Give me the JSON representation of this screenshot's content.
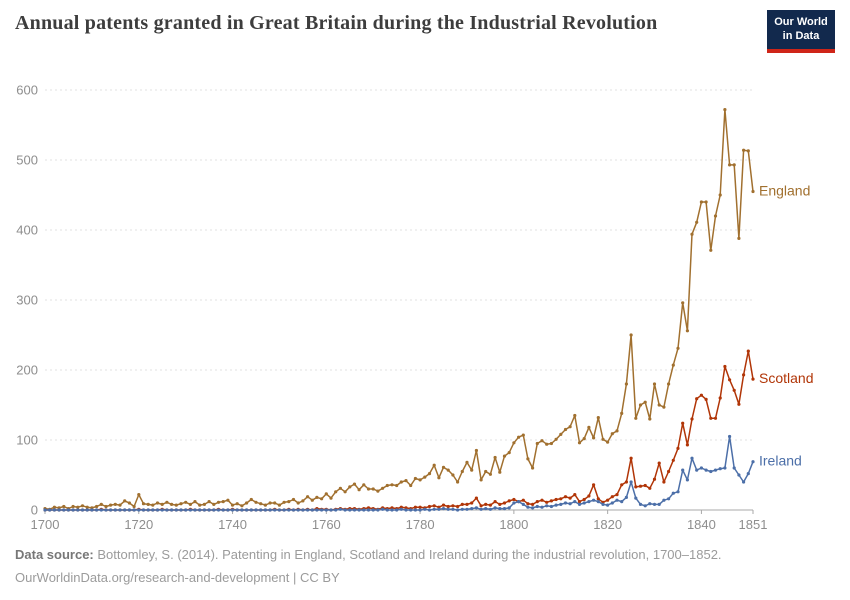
{
  "header": {
    "title": "Annual patents granted in Great Britain during the Industrial Revolution",
    "logo": {
      "line1": "Our World",
      "line2": "in Data"
    }
  },
  "colors": {
    "logo_bg": "#12294d",
    "logo_accent": "#cf2518",
    "title_text": "#3d3d3d",
    "axis_text": "#8e8e8e",
    "gridline": "#e2e2e2",
    "zero_line": "#a9a9a9"
  },
  "footer": {
    "source_label": "Data source:",
    "source_text": " Bottomley, S. (2014). Patenting in England, Scotland and Ireland during the industrial revolution, 1700–1852.",
    "link": "OurWorldinData.org/research-and-development",
    "separator": " | ",
    "license": "CC BY"
  },
  "chart_data": {
    "type": "line",
    "title": "Annual patents granted in Great Britain during the Industrial Revolution",
    "xlabel": "",
    "ylabel": "",
    "x_range": [
      1700,
      1851
    ],
    "ylim": [
      0,
      600
    ],
    "yticks": [
      0,
      100,
      200,
      300,
      400,
      500,
      600
    ],
    "xticks": [
      1700,
      1720,
      1740,
      1760,
      1780,
      1800,
      1820,
      1840,
      1851
    ],
    "grid": "horizontal-dashed",
    "legend_position": "end-of-line-labels",
    "markers": true,
    "series": [
      {
        "name": "England",
        "color": "#a1702f",
        "values": [
          2,
          1,
          4,
          3,
          5,
          2,
          5,
          4,
          6,
          4,
          3,
          5,
          8,
          5,
          7,
          8,
          7,
          13,
          10,
          5,
          22,
          9,
          8,
          7,
          10,
          8,
          11,
          8,
          7,
          9,
          11,
          8,
          12,
          7,
          8,
          12,
          8,
          11,
          12,
          14,
          7,
          9,
          6,
          10,
          15,
          11,
          9,
          7,
          10,
          10,
          7,
          11,
          12,
          15,
          10,
          13,
          19,
          14,
          18,
          16,
          23,
          17,
          26,
          31,
          26,
          33,
          37,
          29,
          36,
          30,
          30,
          27,
          31,
          35,
          36,
          35,
          40,
          42,
          35,
          45,
          43,
          47,
          52,
          64,
          46,
          61,
          57,
          50,
          40,
          55,
          68,
          57,
          85,
          43,
          55,
          51,
          75,
          54,
          77,
          82,
          96,
          104,
          107,
          73,
          60,
          95,
          99,
          94,
          95,
          101,
          108,
          115,
          119,
          135,
          96,
          102,
          118,
          103,
          132,
          101,
          97,
          109,
          113,
          138,
          180,
          250,
          131,
          150,
          154,
          130,
          180,
          150,
          147,
          180,
          207,
          231,
          296,
          256,
          394,
          411,
          440,
          440,
          371,
          420,
          450,
          572,
          493,
          493,
          388,
          514,
          513,
          455
        ]
      },
      {
        "name": "Scotland",
        "color": "#b13507",
        "values": [
          0,
          0,
          0,
          0,
          0,
          0,
          0,
          0,
          0,
          0,
          0,
          0,
          1,
          0,
          0,
          0,
          0,
          0,
          0,
          0,
          1,
          0,
          0,
          0,
          0,
          1,
          0,
          0,
          0,
          0,
          0,
          1,
          0,
          0,
          0,
          0,
          0,
          1,
          0,
          0,
          1,
          0,
          0,
          0,
          0,
          0,
          0,
          0,
          0,
          1,
          0,
          0,
          1,
          0,
          1,
          0,
          1,
          0,
          2,
          1,
          1,
          0,
          1,
          2,
          1,
          2,
          2,
          1,
          2,
          3,
          2,
          1,
          3,
          2,
          3,
          2,
          4,
          3,
          2,
          4,
          4,
          3,
          5,
          6,
          4,
          7,
          5,
          6,
          5,
          8,
          8,
          10,
          17,
          6,
          8,
          7,
          12,
          8,
          10,
          13,
          15,
          12,
          14,
          9,
          8,
          12,
          14,
          11,
          13,
          15,
          16,
          19,
          17,
          22,
          12,
          15,
          20,
          36,
          16,
          11,
          14,
          19,
          22,
          36,
          40,
          74,
          33,
          34,
          35,
          31,
          44,
          67,
          40,
          55,
          71,
          88,
          124,
          93,
          130,
          159,
          164,
          158,
          131,
          131,
          160,
          205,
          186,
          171,
          151,
          193,
          227,
          187
        ]
      },
      {
        "name": "Ireland",
        "color": "#4c6fa8",
        "values": [
          0,
          0,
          0,
          0,
          0,
          0,
          0,
          0,
          0,
          0,
          0,
          0,
          0,
          0,
          0,
          0,
          0,
          0,
          0,
          0,
          0,
          0,
          0,
          0,
          0,
          0,
          0,
          0,
          0,
          0,
          0,
          0,
          0,
          0,
          0,
          0,
          0,
          0,
          0,
          0,
          0,
          0,
          0,
          0,
          0,
          0,
          0,
          0,
          0,
          0,
          0,
          0,
          0,
          0,
          0,
          0,
          0,
          0,
          0,
          0,
          0,
          0,
          0,
          1,
          0,
          0,
          0,
          0,
          0,
          0,
          0,
          0,
          1,
          0,
          0,
          0,
          1,
          0,
          0,
          0,
          0,
          1,
          0,
          1,
          1,
          2,
          1,
          1,
          0,
          1,
          1,
          2,
          3,
          1,
          2,
          1,
          3,
          2,
          2,
          3,
          10,
          12,
          8,
          4,
          3,
          5,
          4,
          6,
          5,
          7,
          8,
          10,
          9,
          12,
          8,
          10,
          12,
          14,
          12,
          8,
          7,
          10,
          14,
          12,
          18,
          40,
          17,
          8,
          6,
          9,
          8,
          8,
          14,
          16,
          24,
          26,
          57,
          43,
          74,
          57,
          60,
          57,
          55,
          57,
          59,
          60,
          105,
          60,
          50,
          40,
          52,
          69
        ]
      }
    ]
  }
}
